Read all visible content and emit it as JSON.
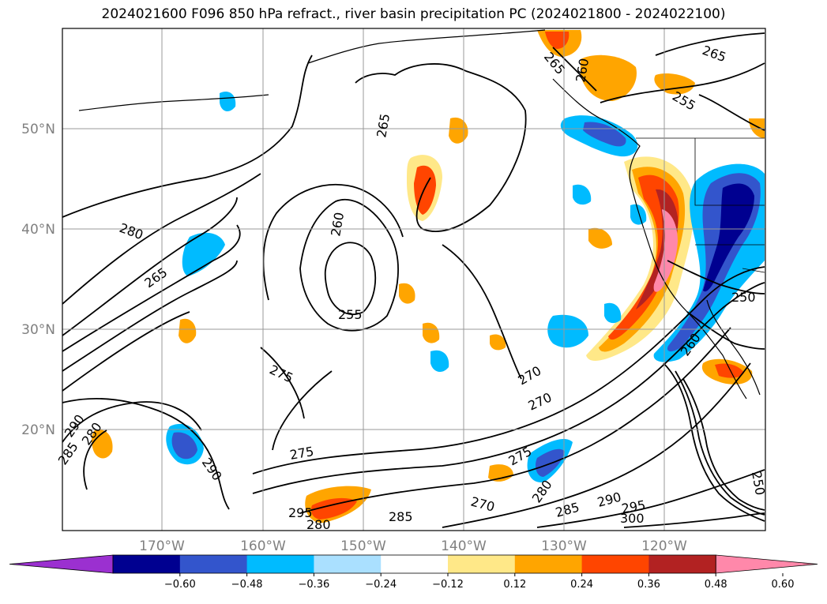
{
  "title": "2024021600 F096 850 hPa refract., river basin precipitation PC (2024021800 - 2024022100)",
  "longitude_labels": [
    "170°W",
    "160°W",
    "150°W",
    "140°W",
    "130°W",
    "120°W"
  ],
  "latitude_labels": [
    "50°N",
    "40°N",
    "30°N",
    "20°N"
  ],
  "colorbar": {
    "tick_labels": [
      "−0.60",
      "−0.48",
      "−0.36",
      "−0.24",
      "−0.12",
      "0.12",
      "0.24",
      "0.36",
      "0.48",
      "0.60"
    ],
    "colors": [
      "#9b30d0",
      "#000090",
      "#3355cc",
      "#00bbff",
      "#aae0ff",
      "#ffffff",
      "#ffe888",
      "#ffa500",
      "#ff4500",
      "#b22222",
      "#ff88aa"
    ]
  },
  "contour_labels": [
    "265",
    "260",
    "255",
    "265",
    "260",
    "265",
    "280",
    "265",
    "255",
    "275",
    "270",
    "270",
    "250",
    "290",
    "280",
    "285",
    "290",
    "275",
    "295",
    "280",
    "285",
    "270",
    "275",
    "280",
    "285",
    "290",
    "295",
    "300",
    "250",
    "260"
  ]
}
